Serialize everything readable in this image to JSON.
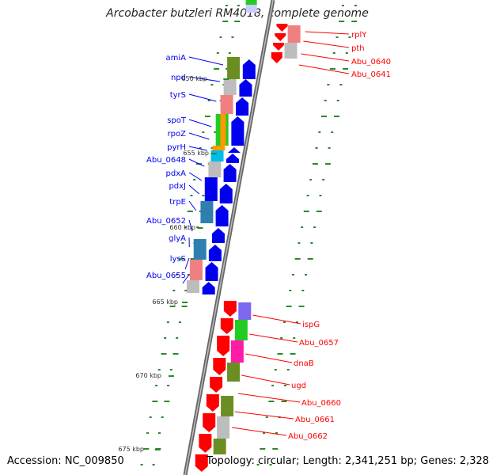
{
  "title": "Arcobacter butzleri RM4018, complete genome",
  "footer": {
    "accession": "Accession: NC_009850",
    "summary": "Topology: circular; Length: 2,341,251 bp; Genes: 2,328"
  },
  "colors": {
    "backbone": "#888888",
    "forward_gene": "#ff0000",
    "reverse_gene": "#0000ee",
    "tick": "#2a8a2a",
    "olive": "#6b8e23",
    "gray": "#bdbdbd",
    "pink": "#f08080",
    "green": "#22cc22",
    "orange": "#ff9900",
    "cyan": "#00bbee",
    "steel": "#2e7fb0",
    "purple": "#7b68ee",
    "magenta": "#ff1aa8"
  },
  "kbp_marks": [
    "650 kbp",
    "655 kbp",
    "660 kbp",
    "665 kbp",
    "670 kbp",
    "675 kbp"
  ],
  "left_genes": [
    {
      "name": "amiA"
    },
    {
      "name": "npd"
    },
    {
      "name": "tyrS"
    },
    {
      "name": "spoT"
    },
    {
      "name": "rpoZ"
    },
    {
      "name": "pyrH"
    },
    {
      "name": "Abu_0648"
    },
    {
      "name": "pdxA"
    },
    {
      "name": "pdxJ"
    },
    {
      "name": "trpE"
    },
    {
      "name": "Abu_0652"
    },
    {
      "name": "glyA"
    },
    {
      "name": "lysS"
    },
    {
      "name": "Abu_0655"
    }
  ],
  "right_genes_top": [
    {
      "name": "rplY"
    },
    {
      "name": "pth"
    },
    {
      "name": "Abu_0640"
    },
    {
      "name": "Abu_0641"
    }
  ],
  "right_genes_bottom": [
    {
      "name": "ispG"
    },
    {
      "name": "Abu_0657"
    },
    {
      "name": "dnaB"
    },
    {
      "name": "ugd"
    },
    {
      "name": "Abu_0660"
    },
    {
      "name": "Abu_0661"
    },
    {
      "name": "Abu_0662"
    }
  ]
}
